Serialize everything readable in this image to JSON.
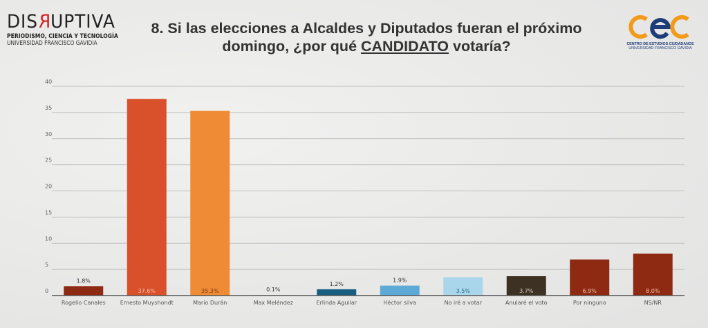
{
  "header": {
    "logo_left": {
      "brand": "DISRUPTIVA",
      "brand_parts": [
        "DIS",
        "R",
        "UPTIVA"
      ],
      "line1": "PERIODISMO, CIENCIA Y TECNOLOGÍA",
      "line2": "UNIVERSIDAD FRANCISCO GAVIDIA"
    },
    "title_line1": "8. Si las elecciones a Alcaldes y Diputados fueran el próximo",
    "title_line2_pre": "domingo, ¿por qué ",
    "title_line2_emph": "CANDIDATO",
    "title_line2_post": " votaría?",
    "logo_right": {
      "mark": "cec",
      "line1": "CENTRO DE ESTUDIOS CIUDADANOS",
      "line2": "UNIVERSIDAD FRANCISCO GAVIDIA",
      "colors": {
        "orange": "#f29a1a",
        "blue": "#1e3c78"
      }
    }
  },
  "chart_data": {
    "type": "bar",
    "title": "8. Si las elecciones a Alcaldes y Diputados fueran el próximo domingo, ¿por qué CANDIDATO votaría?",
    "xlabel": "",
    "ylabel": "",
    "ylim": [
      0,
      40
    ],
    "yticks": [
      0,
      5,
      10,
      15,
      20,
      25,
      30,
      35,
      40
    ],
    "grid": true,
    "legend": "none",
    "categories": [
      "Rogelio Canales",
      "Ernesto Muyshondt",
      "Mario Durán",
      "Max Meléndez",
      "Erlinda Aguilar",
      "Héctor silva",
      "No iré a votar",
      "Anularé el voto",
      "Por ninguno",
      "NS/NR"
    ],
    "values": [
      1.8,
      37.6,
      35.3,
      0.1,
      1.2,
      1.9,
      3.5,
      3.7,
      6.9,
      8.0
    ],
    "labels": [
      "1.8%",
      "37.6%",
      "35.3%",
      "0.1%",
      "1.2%",
      "1.9%",
      "3.5%",
      "3.7%",
      "6.9%",
      "8.0%"
    ],
    "label_inside": [
      false,
      true,
      true,
      false,
      false,
      false,
      true,
      true,
      true,
      true
    ],
    "colors": [
      "#8f2a12",
      "#d9512a",
      "#ef8a35",
      "#e8dcd0",
      "#1a5e82",
      "#5eaad6",
      "#a9d6ea",
      "#3d3124",
      "#8f2a12",
      "#8f2a12"
    ],
    "label_colors": [
      "#333333",
      "#f5c2a8",
      "#7a3a10",
      "#333333",
      "#333333",
      "#333333",
      "#2a6a86",
      "#d8d0c4",
      "#f5c2a8",
      "#f5c2a8"
    ]
  }
}
